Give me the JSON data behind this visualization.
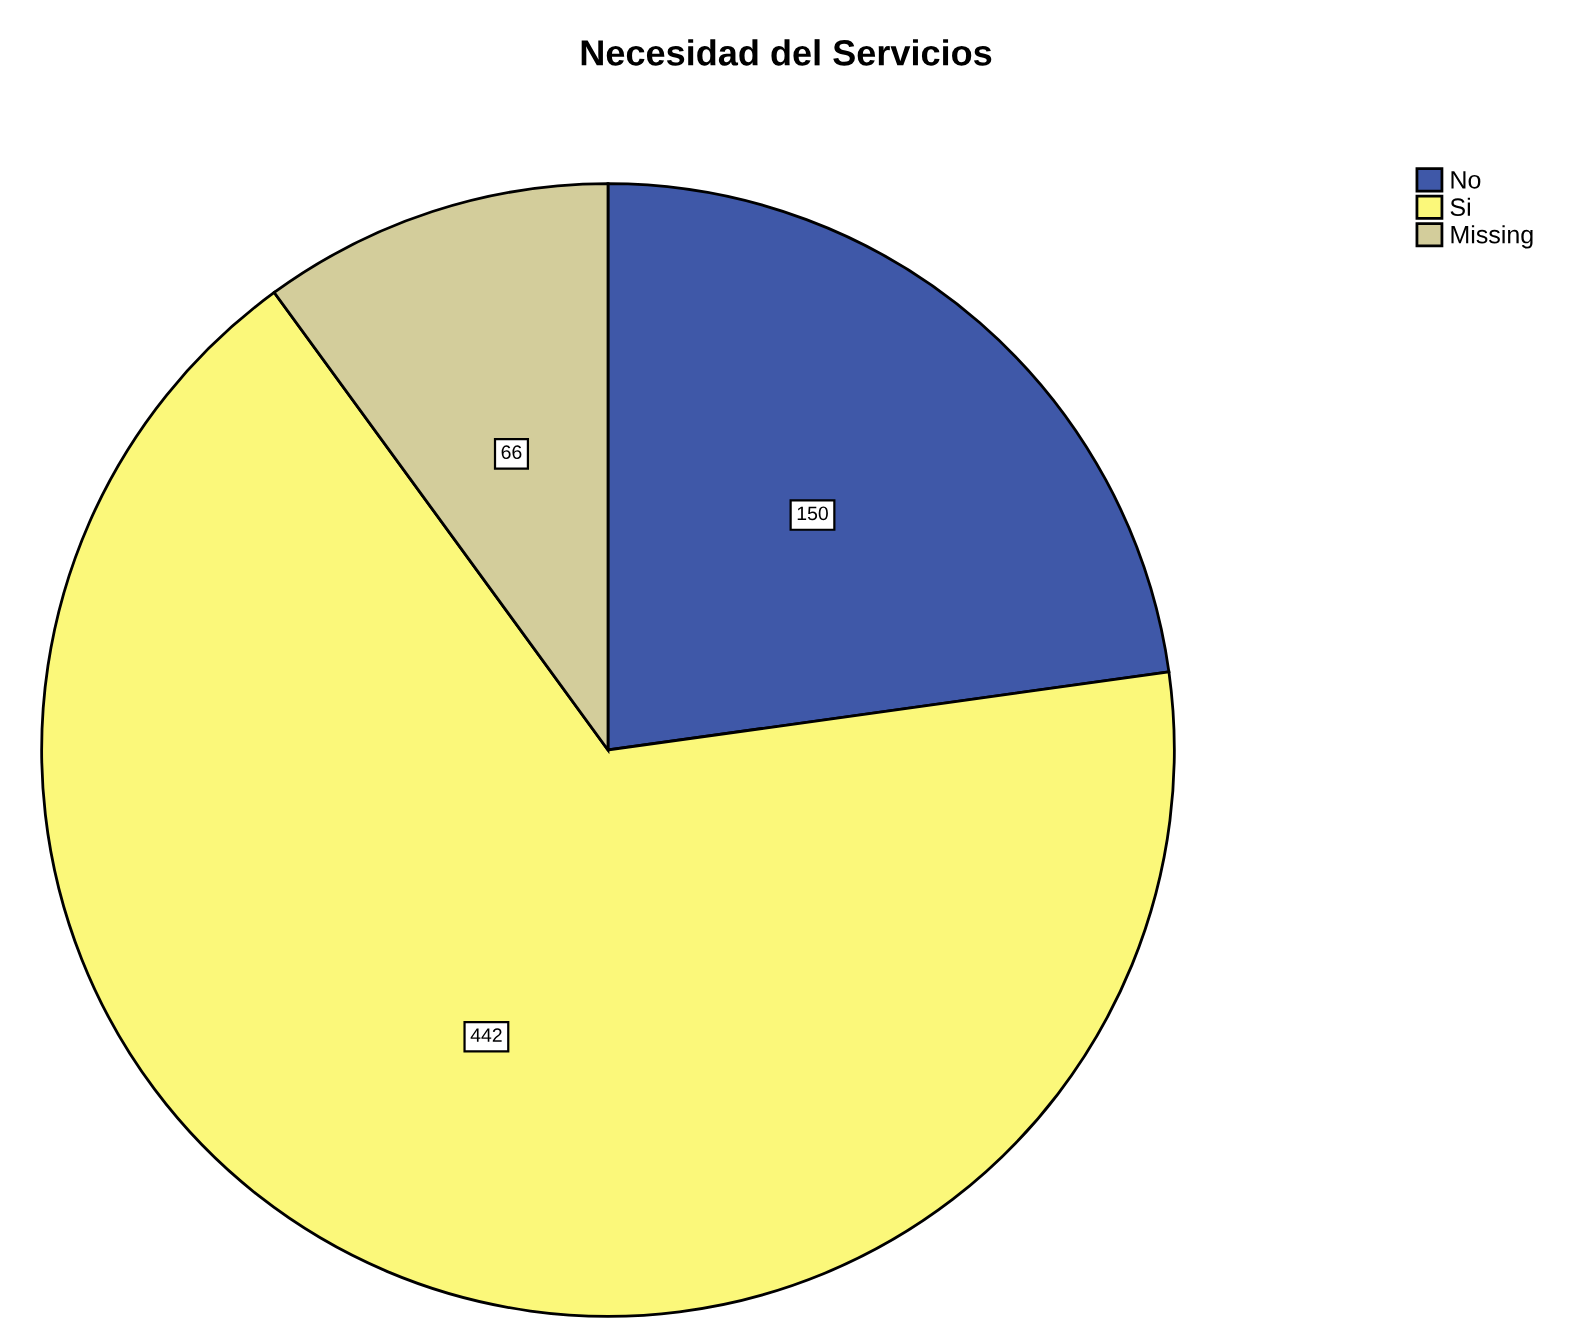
{
  "chart_data": {
    "type": "pie",
    "title": "Necesidad del Servicios",
    "categories": [
      "No",
      "Si",
      "Missing"
    ],
    "values": [
      150,
      442,
      66
    ],
    "colors": [
      "#3f58a8",
      "#fbf87a",
      "#d3cd9b"
    ],
    "data_labels": true,
    "legend": "top right"
  }
}
